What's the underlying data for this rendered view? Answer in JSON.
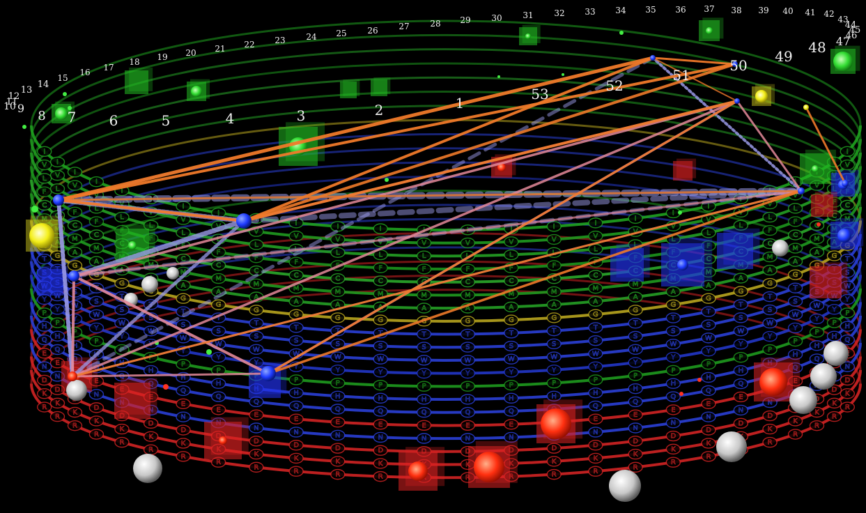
{
  "ring_alphabet": [
    "I",
    "V",
    "L",
    "F",
    "C",
    "M",
    "A",
    "G",
    "T",
    "S",
    "W",
    "Y",
    "P",
    "H",
    "Q",
    "E",
    "N",
    "D",
    "K",
    "R"
  ],
  "ring_colors": [
    "#1fa31f",
    "#1f9a1f",
    "#24a024",
    "#1c951c",
    "#2aa82a",
    "#1f9a1f",
    "#25a025",
    "#b8a51e",
    "#2a3fd6",
    "#2a3fd6",
    "#2a3fd6",
    "#2236c8",
    "#1e9a1e",
    "#2a3fd6",
    "#2a3fd6",
    "#d12323",
    "#2a3fd6",
    "#d12323",
    "#d12323",
    "#d12323"
  ],
  "position_labels": [
    "1",
    "2",
    "3",
    "4",
    "5",
    "6",
    "7",
    "8",
    "9",
    "10",
    "11",
    "12",
    "13",
    "14",
    "15",
    "16",
    "17",
    "18",
    "19",
    "20",
    "21",
    "22",
    "23",
    "24",
    "25",
    "26",
    "27",
    "28",
    "29",
    "30",
    "31",
    "32",
    "33",
    "34",
    "35",
    "36",
    "37",
    "38",
    "39",
    "40",
    "41",
    "42",
    "43",
    "44",
    "45",
    "46",
    "47",
    "48",
    "49",
    "50",
    "51",
    "52",
    "53"
  ],
  "link_colors": {
    "orange": "#f07a2a",
    "pink": "#e58a9a",
    "lavender": "#9a9ae8",
    "node": "#1f3cff"
  }
}
